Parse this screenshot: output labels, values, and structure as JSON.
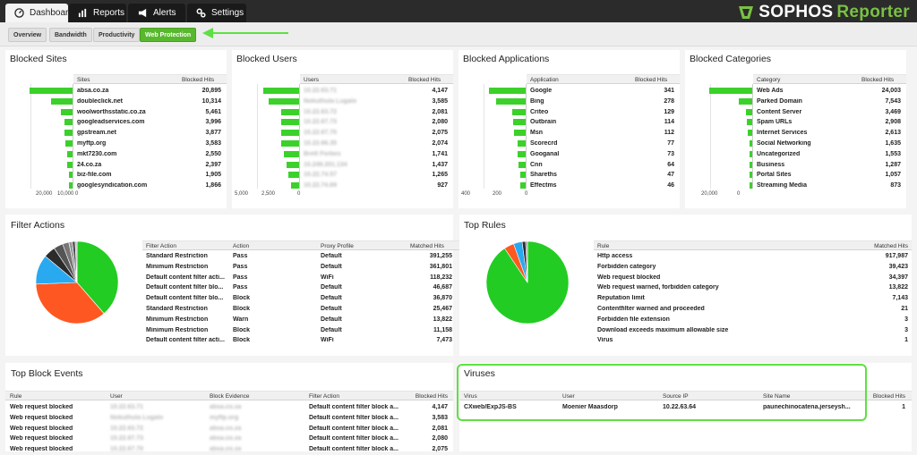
{
  "nav": {
    "tabs": [
      {
        "label": "Dashboard",
        "icon": "speedometer-icon"
      },
      {
        "label": "Reports",
        "icon": "bar-chart-icon"
      },
      {
        "label": "Alerts",
        "icon": "megaphone-icon"
      },
      {
        "label": "Settings",
        "icon": "gears-icon"
      }
    ],
    "brand_primary": "SOPHOS",
    "brand_secondary": "Reporter"
  },
  "subnav": {
    "items": [
      "Overview",
      "Bandwidth",
      "Productivity",
      "Web Protection"
    ],
    "active": "Web Protection"
  },
  "colors": {
    "accent": "#58b82d",
    "bar": "#3bd12a",
    "pie_green": "#22cc22",
    "pie_orange": "#ff5722",
    "pie_blue": "#29a9f0",
    "highlight": "#5ee043"
  },
  "blocked_sites": {
    "title": "Blocked Sites",
    "headers": [
      "Sites",
      "Blocked Hits"
    ],
    "rows": [
      {
        "name": "absa.co.za",
        "hits": "20,895",
        "value": 20895
      },
      {
        "name": "doubleclick.net",
        "hits": "10,314",
        "value": 10314
      },
      {
        "name": "woolworthsstatic.co.za",
        "hits": "5,461",
        "value": 5461
      },
      {
        "name": "googleadservices.com",
        "hits": "3,996",
        "value": 3996
      },
      {
        "name": "gpstream.net",
        "hits": "3,877",
        "value": 3877
      },
      {
        "name": "myftp.org",
        "hits": "3,583",
        "value": 3583
      },
      {
        "name": "mkt7230.com",
        "hits": "2,550",
        "value": 2550
      },
      {
        "name": "24.co.za",
        "hits": "2,397",
        "value": 2397
      },
      {
        "name": "biz-file.com",
        "hits": "1,905",
        "value": 1905
      },
      {
        "name": "googlesyndication.com",
        "hits": "1,866",
        "value": 1866
      }
    ],
    "axis": [
      "20,000",
      "10,000",
      "0"
    ],
    "max": 20895
  },
  "blocked_users": {
    "title": "Blocked Users",
    "headers": [
      "Users",
      "Blocked Hits"
    ],
    "rows": [
      {
        "name": "10.22.63.71",
        "hits": "4,147",
        "value": 4147
      },
      {
        "name": "Nokuthula Lugalo",
        "hits": "3,585",
        "value": 3585
      },
      {
        "name": "10.22.63.72",
        "hits": "2,081",
        "value": 2081
      },
      {
        "name": "10.22.67.73",
        "hits": "2,080",
        "value": 2080
      },
      {
        "name": "10.22.67.70",
        "hits": "2,075",
        "value": 2075
      },
      {
        "name": "10.22.66.35",
        "hits": "2,074",
        "value": 2074
      },
      {
        "name": "Brett Forbes",
        "hits": "1,741",
        "value": 1741
      },
      {
        "name": "10.249.201.134",
        "hits": "1,437",
        "value": 1437
      },
      {
        "name": "10.22.74.57",
        "hits": "1,265",
        "value": 1265
      },
      {
        "name": "10.22.74.69",
        "hits": "927",
        "value": 927
      }
    ],
    "axis": [
      "5,000",
      "2,500",
      "0"
    ],
    "max": 5000
  },
  "blocked_applications": {
    "title": "Blocked Applications",
    "headers": [
      "Application",
      "Blocked Hits"
    ],
    "rows": [
      {
        "name": "Google",
        "hits": "341",
        "value": 341
      },
      {
        "name": "Bing",
        "hits": "278",
        "value": 278
      },
      {
        "name": "Criteo",
        "hits": "129",
        "value": 129
      },
      {
        "name": "Outbrain",
        "hits": "114",
        "value": 114
      },
      {
        "name": "Msn",
        "hits": "112",
        "value": 112
      },
      {
        "name": "Scorecrd",
        "hits": "77",
        "value": 77
      },
      {
        "name": "Googanal",
        "hits": "73",
        "value": 73
      },
      {
        "name": "Cnn",
        "hits": "64",
        "value": 64
      },
      {
        "name": "Shareths",
        "hits": "47",
        "value": 47
      },
      {
        "name": "Effectms",
        "hits": "46",
        "value": 46
      }
    ],
    "axis": [
      "400",
      "200",
      "0"
    ],
    "max": 400
  },
  "blocked_categories": {
    "title": "Blocked Categories",
    "headers": [
      "Category",
      "Blocked Hits"
    ],
    "rows": [
      {
        "name": "Web Ads",
        "hits": "24,003",
        "value": 24003
      },
      {
        "name": "Parked Domain",
        "hits": "7,543",
        "value": 7543
      },
      {
        "name": "Content Server",
        "hits": "3,469",
        "value": 3469
      },
      {
        "name": "Spam URLs",
        "hits": "2,908",
        "value": 2908
      },
      {
        "name": "Internet Services",
        "hits": "2,613",
        "value": 2613
      },
      {
        "name": "Social Networking",
        "hits": "1,635",
        "value": 1635
      },
      {
        "name": "Uncategorized",
        "hits": "1,553",
        "value": 1553
      },
      {
        "name": "Business",
        "hits": "1,287",
        "value": 1287
      },
      {
        "name": "Portal Sites",
        "hits": "1,057",
        "value": 1057
      },
      {
        "name": "Streaming Media",
        "hits": "873",
        "value": 873
      }
    ],
    "axis": [
      "20,000",
      "0"
    ],
    "max": 24003
  },
  "filter_actions": {
    "title": "Filter Actions",
    "headers": [
      "Filter Action",
      "Action",
      "Proxy Profile",
      "Matched Hits"
    ],
    "rows": [
      {
        "filter": "Standard Restriction",
        "action": "Pass",
        "profile": "Default",
        "hits": "391,255"
      },
      {
        "filter": "Minimum Restriction",
        "action": "Pass",
        "profile": "Default",
        "hits": "361,801"
      },
      {
        "filter": "Default content filter acti...",
        "action": "Pass",
        "profile": "WiFi",
        "hits": "118,232"
      },
      {
        "filter": "Default content filter blo...",
        "action": "Pass",
        "profile": "Default",
        "hits": "46,687"
      },
      {
        "filter": "Default content filter blo...",
        "action": "Block",
        "profile": "Default",
        "hits": "36,870"
      },
      {
        "filter": "Standard Restriction",
        "action": "Block",
        "profile": "Default",
        "hits": "25,467"
      },
      {
        "filter": "Minimum Restriction",
        "action": "Warn",
        "profile": "Default",
        "hits": "13,822"
      },
      {
        "filter": "Minimum Restriction",
        "action": "Block",
        "profile": "Default",
        "hits": "11,158"
      },
      {
        "filter": "Default content filter acti...",
        "action": "Block",
        "profile": "WiFi",
        "hits": "7,473"
      }
    ],
    "pie": [
      391255,
      361801,
      118232,
      46687,
      36870,
      25467,
      13822,
      11158,
      7473
    ],
    "pie_colors": [
      "#22cc22",
      "#ff5722",
      "#29a9f0",
      "#2b2b2b",
      "#555555",
      "#777777",
      "#999999",
      "#444444",
      "#bbbbbb"
    ]
  },
  "top_rules": {
    "title": "Top Rules",
    "headers": [
      "Rule",
      "Matched Hits"
    ],
    "rows": [
      {
        "rule": "Http access",
        "hits": "917,987"
      },
      {
        "rule": "Forbidden category",
        "hits": "39,423"
      },
      {
        "rule": "Web request blocked",
        "hits": "34,397"
      },
      {
        "rule": "Web request warned, forbidden category",
        "hits": "13,822"
      },
      {
        "rule": "Reputation limit",
        "hits": "7,143"
      },
      {
        "rule": "Contentfilter warned and proceeded",
        "hits": "21"
      },
      {
        "rule": "Forbidden file extension",
        "hits": "3"
      },
      {
        "rule": "Download exceeds maximum allowable size",
        "hits": "3"
      },
      {
        "rule": "Virus",
        "hits": "1"
      }
    ],
    "pie": [
      917987,
      39423,
      34397,
      13822,
      7143,
      21,
      3,
      3,
      1
    ],
    "pie_colors": [
      "#22cc22",
      "#ff5722",
      "#29a9f0",
      "#2b2b2b",
      "#777777",
      "#999999",
      "#aaaaaa",
      "#bbbbbb",
      "#cccccc"
    ]
  },
  "top_block_events": {
    "title": "Top Block Events",
    "headers": [
      "Rule",
      "User",
      "Block Evidence",
      "Filter Action",
      "Blocked Hits"
    ],
    "rows": [
      {
        "rule": "Web request blocked",
        "user": "10.22.63.71",
        "evidence": "absa.co.za",
        "filter": "Default content filter block a...",
        "hits": "4,147"
      },
      {
        "rule": "Web request blocked",
        "user": "Nokuthula Lugalo",
        "evidence": "myftp.org",
        "filter": "Default content filter block a...",
        "hits": "3,583"
      },
      {
        "rule": "Web request blocked",
        "user": "10.22.63.72",
        "evidence": "absa.co.za",
        "filter": "Default content filter block a...",
        "hits": "2,081"
      },
      {
        "rule": "Web request blocked",
        "user": "10.22.67.73",
        "evidence": "absa.co.za",
        "filter": "Default content filter block a...",
        "hits": "2,080"
      },
      {
        "rule": "Web request blocked",
        "user": "10.22.67.70",
        "evidence": "absa.co.za",
        "filter": "Default content filter block a...",
        "hits": "2,075"
      }
    ]
  },
  "viruses": {
    "title": "Viruses",
    "headers": [
      "Virus",
      "User",
      "Source IP",
      "Site Name",
      "Blocked Hits"
    ],
    "rows": [
      {
        "virus": "CXweb/ExpJS-BS",
        "user": "Moenier Maasdorp",
        "ip": "10.22.63.64",
        "site": "paunechinocatena.jerseysh...",
        "hits": "1"
      }
    ]
  }
}
